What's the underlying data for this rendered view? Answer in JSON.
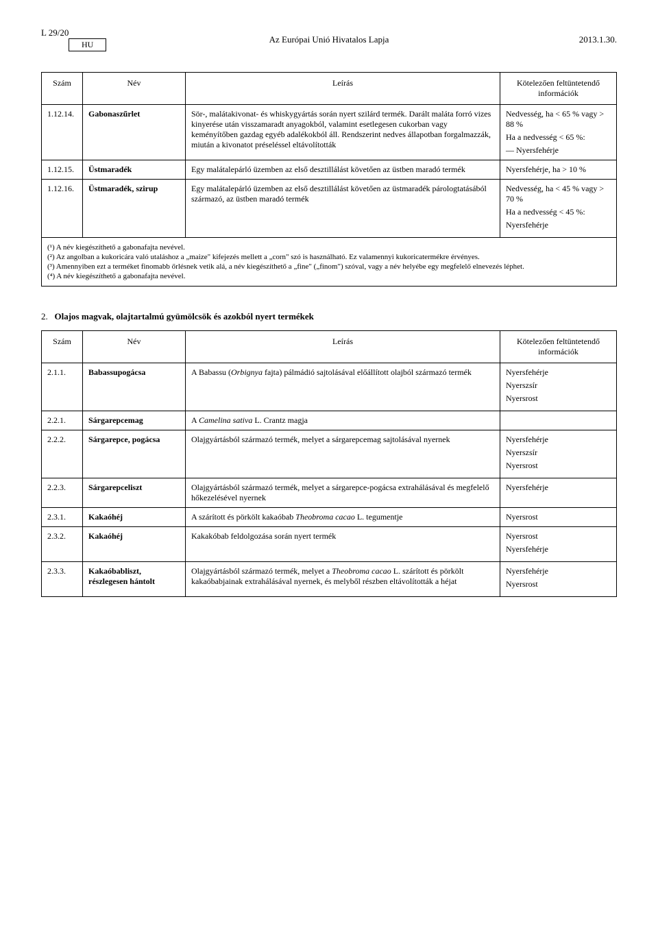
{
  "header": {
    "left": "L 29/20",
    "hu": "HU",
    "center": "Az Európai Unió Hivatalos Lapja",
    "right": "2013.1.30."
  },
  "table1": {
    "headers": {
      "num": "Szám",
      "name": "Név",
      "desc": "Leírás",
      "info": "Kötelezően feltüntetendő információk"
    },
    "rows": [
      {
        "num": "1.12.14.",
        "name": "Gabonaszűrlet",
        "desc": "Sör-, malátakivonat- és whiskygyártás során nyert szilárd termék. Darált maláta forró vizes kinyerése után visszamaradt anyagokból, valamint esetlegesen cukorban vagy keményítőben gazdag egyéb adalékokból áll. Rendszerint nedves állapotban forgalmazzák, miután a kivonatot préseléssel eltávolították",
        "info1": "Nedvesség, ha < 65 % vagy > 88 %",
        "info2": "Ha a nedvesség < 65 %:",
        "info3": "— Nyersfehérje"
      },
      {
        "num": "1.12.15.",
        "name": "Üstmaradék",
        "desc": "Egy malátalepárló üzemben az első desztillálást követően az üstben maradó termék",
        "info1": "Nyersfehérje, ha > 10 %"
      },
      {
        "num": "1.12.16.",
        "name": "Üstmaradék, szirup",
        "desc": "Egy malátalepárló üzemben az első desztillálást követően az üstmaradék párologtatásából származó, az üstben maradó termék",
        "info1": "Nedvesség, ha < 45 % vagy > 70 %",
        "info2": "Ha a nedvesség < 45 %:",
        "info3": "Nyersfehérje"
      }
    ]
  },
  "footnotes": {
    "f1": "(¹) A név kiegészíthető a gabonafajta nevével.",
    "f2": "(²) Az angolban a kukoricára való utaláshoz a „maize\" kifejezés mellett a „corn\" szó is használható. Ez valamennyi kukoricatermékre érvényes.",
    "f3": "(³) Amennyiben ezt a terméket finomabb őrlésnek vetik alá, a név kiegészíthető a „fine\" („finom\") szóval, vagy a név helyébe egy megfelelő elnevezés léphet.",
    "f4": "(⁴) A név kiegészíthető a gabonafajta nevével."
  },
  "section2": {
    "title_num": "2.",
    "title": "Olajos magvak, olajtartalmú gyümölcsök és azokból nyert termékek",
    "headers": {
      "num": "Szám",
      "name": "Név",
      "desc": "Leírás",
      "info": "Kötelezően feltüntetendő információk"
    },
    "rows": [
      {
        "num": "2.1.1.",
        "name": "Babassupogácsa",
        "desc_pre": "A Babassu (",
        "desc_it": "Orbignya",
        "desc_post": " fajta) pálmádió sajtolásával előállított olajból származó termék",
        "info1": "Nyersfehérje",
        "info2": "Nyerszsír",
        "info3": "Nyersrost"
      },
      {
        "num": "2.2.1.",
        "name": "Sárgarepcemag",
        "desc_pre": "A ",
        "desc_it": "Camelina sativa",
        "desc_post": " L. Crantz magja",
        "info1": ""
      },
      {
        "num": "2.2.2.",
        "name": "Sárgarepce, pogácsa",
        "desc": "Olajgyártásból származó termék, melyet a sárgarepcemag sajtolásával nyernek",
        "info1": "Nyersfehérje",
        "info2": "Nyerszsír",
        "info3": "Nyersrost"
      },
      {
        "num": "2.2.3.",
        "name": "Sárgarepceliszt",
        "desc": "Olajgyártásból származó termék, melyet a sárgarepce-pogácsa extrahálásával és megfelelő hőkezelésével nyernek",
        "info1": "Nyersfehérje"
      },
      {
        "num": "2.3.1.",
        "name": "Kakaóhéj",
        "desc_pre": "A szárított és pörkölt kakaóbab ",
        "desc_it": "Theobroma cacao",
        "desc_post": " L. tegumentje",
        "info1": "Nyersrost"
      },
      {
        "num": "2.3.2.",
        "name": "Kakaóhéj",
        "desc": "Kakakóbab feldolgozása során nyert termék",
        "info1": "Nyersrost",
        "info2": "Nyersfehérje"
      },
      {
        "num": "2.3.3.",
        "name": "Kakaóbabliszt, részlegesen hántolt",
        "desc_pre": "Olajgyártásból származó termék, melyet a ",
        "desc_it": "Theobroma cacao",
        "desc_post": " L. szárított és pörkölt kakaóbabjainak extrahálásával nyernek, és melyből részben eltávolították a héjat",
        "info1": "Nyersfehérje",
        "info2": "Nyersrost"
      }
    ]
  }
}
